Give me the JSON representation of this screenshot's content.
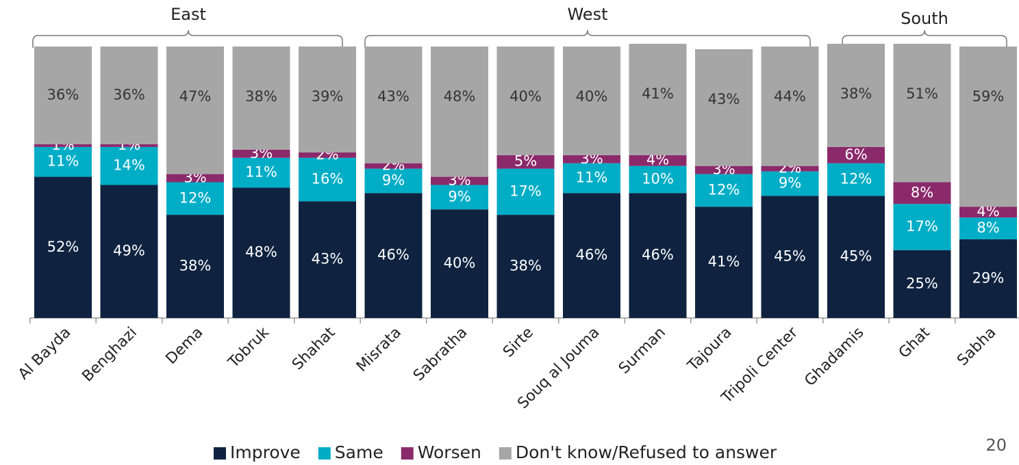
{
  "chart_data": {
    "type": "stacked_bar",
    "categories": [
      "Al Bayda",
      "Benghazi",
      "Dema",
      "Tobruk",
      "Shahat",
      "Misrata",
      "Sabratha",
      "Sirte",
      "Souq al Jouma",
      "Surman",
      "Tajoura",
      "Tripoli Center",
      "Ghadamis",
      "Ghat",
      "Sabha"
    ],
    "groups": [
      "East",
      "West",
      "South"
    ],
    "ylim": [
      0,
      100
    ],
    "legend": "bottom",
    "page_number": "20",
    "series": [
      {
        "name": "Improve",
        "color": "#0f2340",
        "values": [
          52,
          49,
          38,
          48,
          43,
          46,
          40,
          38,
          46,
          46,
          41,
          45,
          45,
          25,
          29
        ],
        "value_labels": [
          "52%",
          "49%",
          "38%",
          "48%",
          "43%",
          "46%",
          "40%",
          "38%",
          "46%",
          "46%",
          "41%",
          "45%",
          "45%",
          "25%",
          "29%"
        ]
      },
      {
        "name": "Same",
        "color": "#00adc6",
        "values": [
          11,
          14,
          12,
          11,
          16,
          9,
          9,
          17,
          11,
          10,
          12,
          9,
          12,
          17,
          8
        ],
        "value_labels": [
          "11%",
          "14%",
          "12%",
          "11%",
          "16%",
          "9%",
          "9%",
          "17%",
          "11%",
          "10%",
          "12%",
          "9%",
          "12%",
          "17%",
          "8%"
        ]
      },
      {
        "name": "Worsen",
        "color": "#8b2a6b",
        "values": [
          1,
          1,
          3,
          3,
          2,
          2,
          3,
          5,
          3,
          4,
          3,
          2,
          6,
          8,
          4
        ],
        "value_labels": [
          "1%",
          "1%",
          "3%",
          "3%",
          "2%",
          "2%",
          "3%",
          "5%",
          "3%",
          "4%",
          "3%",
          "2%",
          "6%",
          "8%",
          "4%"
        ]
      },
      {
        "name": "Don't know/Refused to answer",
        "color": "#a6a6a6",
        "values": [
          36,
          36,
          47,
          38,
          39,
          43,
          48,
          40,
          40,
          41,
          43,
          44,
          38,
          51,
          59
        ],
        "value_labels": [
          "36%",
          "36%",
          "47%",
          "38%",
          "39%",
          "43%",
          "48%",
          "40%",
          "40%",
          "41%",
          "43%",
          "44%",
          "38%",
          "51%",
          "59%"
        ]
      }
    ]
  }
}
